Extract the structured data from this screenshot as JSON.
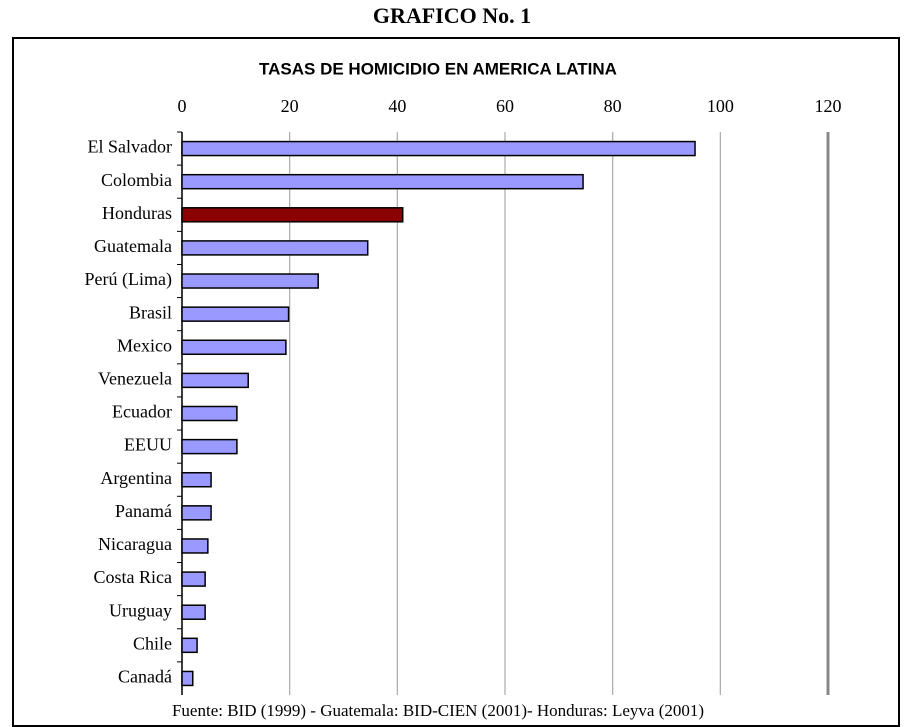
{
  "heading": "GRAFICO No. 1",
  "chart_data": {
    "type": "barh",
    "title": "TASAS DE HOMICIDIO EN AMERICA LATINA",
    "categories": [
      "El Salvador",
      "Colombia",
      "Honduras",
      "Guatemala",
      "Perú (Lima)",
      "Brasil",
      "Mexico",
      "Venezuela",
      "Ecuador",
      "EEUU",
      "Argentina",
      "Panamá",
      "Nicaragua",
      "Costa Rica",
      "Uruguay",
      "Chile",
      "Canadá"
    ],
    "values": [
      95.3,
      74.5,
      41,
      34.5,
      25.3,
      19.8,
      19.3,
      12.3,
      10.2,
      10.2,
      5.4,
      5.4,
      4.8,
      4.3,
      4.3,
      2.8,
      2
    ],
    "colors": [
      "#9999ff",
      "#9999ff",
      "#8b0000",
      "#9999ff",
      "#9999ff",
      "#9999ff",
      "#9999ff",
      "#9999ff",
      "#9999ff",
      "#9999ff",
      "#9999ff",
      "#9999ff",
      "#9999ff",
      "#9999ff",
      "#9999ff",
      "#9999ff",
      "#9999ff"
    ],
    "xlim": [
      0,
      120
    ],
    "xticks": [
      0,
      20,
      40,
      60,
      80,
      100,
      120
    ],
    "grid": true,
    "source": "Fuente: BID (1999) - Guatemala: BID-CIEN (2001)- Honduras: Leyva (2001)"
  }
}
